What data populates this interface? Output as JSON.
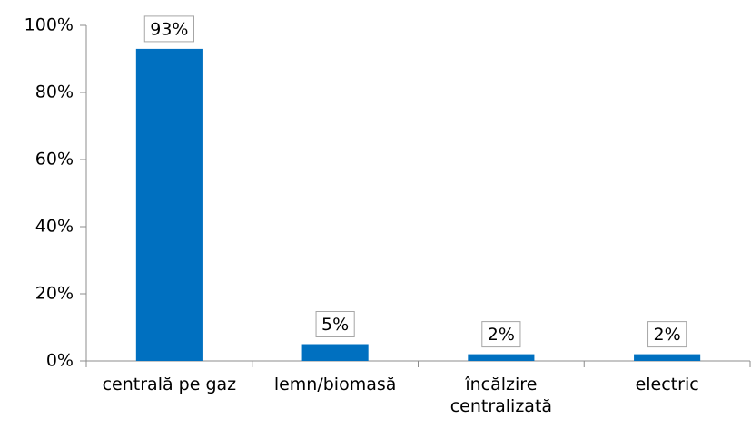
{
  "chart_data": {
    "type": "bar",
    "categories": [
      "centrală pe gaz",
      "lemn/biomasă",
      "încălzire centralizată",
      "electric"
    ],
    "values": [
      93,
      5,
      2,
      2
    ],
    "value_labels": [
      "93%",
      "5%",
      "2%",
      "2%"
    ],
    "color": "#0070c0",
    "ylim": [
      0,
      100
    ],
    "yticks": [
      {
        "value": 0,
        "label": "0%"
      },
      {
        "value": 20,
        "label": "20%"
      },
      {
        "value": 40,
        "label": "40%"
      },
      {
        "value": 60,
        "label": "60%"
      },
      {
        "value": 80,
        "label": "80%"
      },
      {
        "value": 100,
        "label": "100%"
      }
    ],
    "grid": false
  }
}
